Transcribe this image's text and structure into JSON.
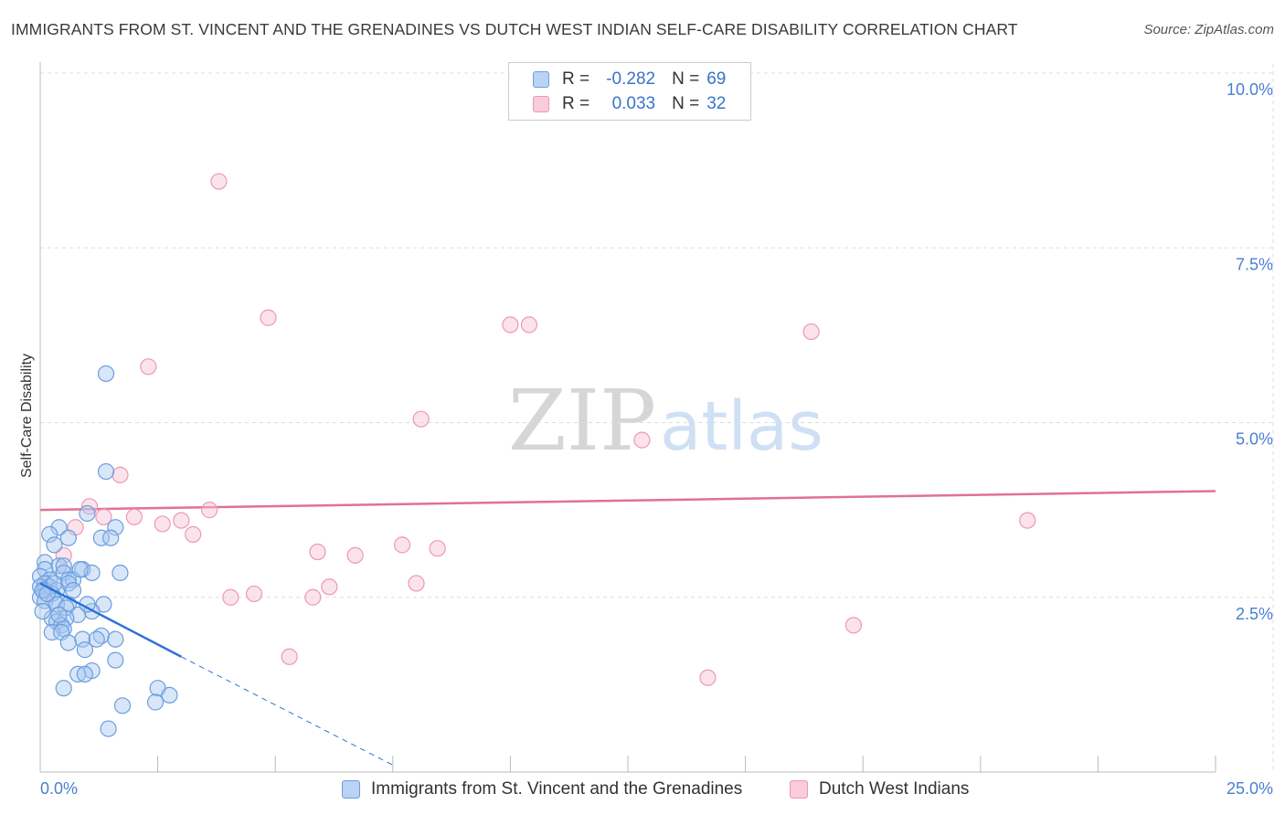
{
  "header": {
    "title": "IMMIGRANTS FROM ST. VINCENT AND THE GRENADINES VS DUTCH WEST INDIAN SELF-CARE DISABILITY CORRELATION CHART",
    "source": "Source: ZipAtlas.com"
  },
  "watermark": {
    "zip": "ZIP",
    "atlas": "atlas"
  },
  "legend": {
    "r_label": "R =",
    "n_label": "N =",
    "series1": {
      "r": "-0.282",
      "n": "69"
    },
    "series2": {
      "r": "0.033",
      "n": "32"
    }
  },
  "chart_data": {
    "type": "scatter",
    "title": "IMMIGRANTS FROM ST. VINCENT AND THE GRENADINES VS DUTCH WEST INDIAN SELF-CARE DISABILITY CORRELATION CHART",
    "xlabel": "",
    "ylabel": "Self-Care Disability",
    "xlim": [
      0,
      25
    ],
    "ylim": [
      0,
      10
    ],
    "x_tick_labels": [
      "0.0%",
      "25.0%"
    ],
    "y_ticks": [
      2.5,
      5.0,
      7.5,
      10.0
    ],
    "y_tick_labels": [
      "2.5%",
      "5.0%",
      "7.5%",
      "10.0%"
    ],
    "colors": {
      "series1_fill": "#a8c8f0",
      "series1_stroke": "#6a9ee0",
      "series1_line": "#2f72d6",
      "series2_fill": "#f7c0d2",
      "series2_stroke": "#ee97b4",
      "series2_line": "#e0709a",
      "grid": "#dddddd",
      "tick_label": "#4a7fd0"
    },
    "series": [
      {
        "name": "Immigrants from St. Vincent and the Grenadines",
        "r": -0.282,
        "n": 69,
        "trend": {
          "x0": 0.0,
          "y0": 2.7,
          "x1": 3.0,
          "y1": 1.65,
          "dash_x1": 7.5,
          "dash_y1": 0.1
        },
        "points": [
          [
            1.4,
            5.7
          ],
          [
            1.4,
            4.3
          ],
          [
            1.0,
            3.7
          ],
          [
            1.6,
            3.5
          ],
          [
            0.4,
            3.5
          ],
          [
            0.2,
            3.4
          ],
          [
            0.6,
            3.35
          ],
          [
            1.3,
            3.35
          ],
          [
            1.5,
            3.35
          ],
          [
            0.3,
            3.25
          ],
          [
            0.1,
            3.0
          ],
          [
            0.4,
            2.95
          ],
          [
            0.5,
            2.95
          ],
          [
            0.9,
            2.9
          ],
          [
            0.1,
            2.9
          ],
          [
            0.5,
            2.85
          ],
          [
            1.1,
            2.85
          ],
          [
            1.7,
            2.85
          ],
          [
            0.0,
            2.8
          ],
          [
            0.2,
            2.75
          ],
          [
            0.6,
            2.75
          ],
          [
            0.7,
            2.75
          ],
          [
            0.1,
            2.7
          ],
          [
            0.6,
            2.7
          ],
          [
            0.0,
            2.65
          ],
          [
            0.2,
            2.65
          ],
          [
            0.35,
            2.6
          ],
          [
            0.1,
            2.6
          ],
          [
            0.25,
            2.55
          ],
          [
            0.0,
            2.5
          ],
          [
            0.3,
            2.45
          ],
          [
            0.1,
            2.45
          ],
          [
            1.35,
            2.4
          ],
          [
            0.6,
            2.4
          ],
          [
            0.35,
            2.4
          ],
          [
            0.55,
            2.35
          ],
          [
            1.1,
            2.3
          ],
          [
            0.8,
            2.25
          ],
          [
            0.25,
            2.2
          ],
          [
            0.55,
            2.2
          ],
          [
            0.35,
            2.15
          ],
          [
            0.45,
            2.1
          ],
          [
            0.5,
            2.05
          ],
          [
            0.25,
            2.0
          ],
          [
            0.45,
            2.0
          ],
          [
            1.3,
            1.95
          ],
          [
            0.9,
            1.9
          ],
          [
            1.2,
            1.9
          ],
          [
            1.6,
            1.9
          ],
          [
            0.6,
            1.85
          ],
          [
            0.95,
            1.75
          ],
          [
            1.6,
            1.6
          ],
          [
            1.1,
            1.45
          ],
          [
            0.8,
            1.4
          ],
          [
            0.95,
            1.4
          ],
          [
            0.5,
            1.2
          ],
          [
            2.5,
            1.2
          ],
          [
            2.75,
            1.1
          ],
          [
            2.45,
            1.0
          ],
          [
            1.75,
            0.95
          ],
          [
            1.45,
            0.62
          ],
          [
            0.05,
            2.6
          ],
          [
            0.15,
            2.55
          ],
          [
            0.3,
            2.7
          ],
          [
            0.7,
            2.6
          ],
          [
            0.85,
            2.9
          ],
          [
            1.0,
            2.4
          ],
          [
            0.05,
            2.3
          ],
          [
            0.4,
            2.25
          ]
        ]
      },
      {
        "name": "Dutch West Indians",
        "r": 0.033,
        "n": 32,
        "trend": {
          "x0": 0.0,
          "y0": 3.75,
          "x1": 25.0,
          "y1": 4.02
        },
        "points": [
          [
            3.8,
            8.45
          ],
          [
            4.85,
            6.5
          ],
          [
            10.0,
            6.4
          ],
          [
            10.4,
            6.4
          ],
          [
            16.4,
            6.3
          ],
          [
            2.3,
            5.8
          ],
          [
            8.1,
            5.05
          ],
          [
            12.8,
            4.75
          ],
          [
            1.7,
            4.25
          ],
          [
            1.05,
            3.8
          ],
          [
            3.6,
            3.75
          ],
          [
            1.35,
            3.65
          ],
          [
            2.0,
            3.65
          ],
          [
            3.0,
            3.6
          ],
          [
            2.6,
            3.55
          ],
          [
            0.75,
            3.5
          ],
          [
            3.25,
            3.4
          ],
          [
            21.0,
            3.6
          ],
          [
            7.7,
            3.25
          ],
          [
            8.45,
            3.2
          ],
          [
            5.9,
            3.15
          ],
          [
            6.7,
            3.1
          ],
          [
            0.5,
            3.1
          ],
          [
            8.0,
            2.7
          ],
          [
            6.15,
            2.65
          ],
          [
            4.55,
            2.55
          ],
          [
            4.05,
            2.5
          ],
          [
            5.8,
            2.5
          ],
          [
            0.05,
            2.6
          ],
          [
            17.3,
            2.1
          ],
          [
            5.3,
            1.65
          ],
          [
            14.2,
            1.35
          ]
        ]
      }
    ]
  },
  "bottom_legend": {
    "series1": "Immigrants from St. Vincent and the Grenadines",
    "series2": "Dutch West Indians"
  }
}
